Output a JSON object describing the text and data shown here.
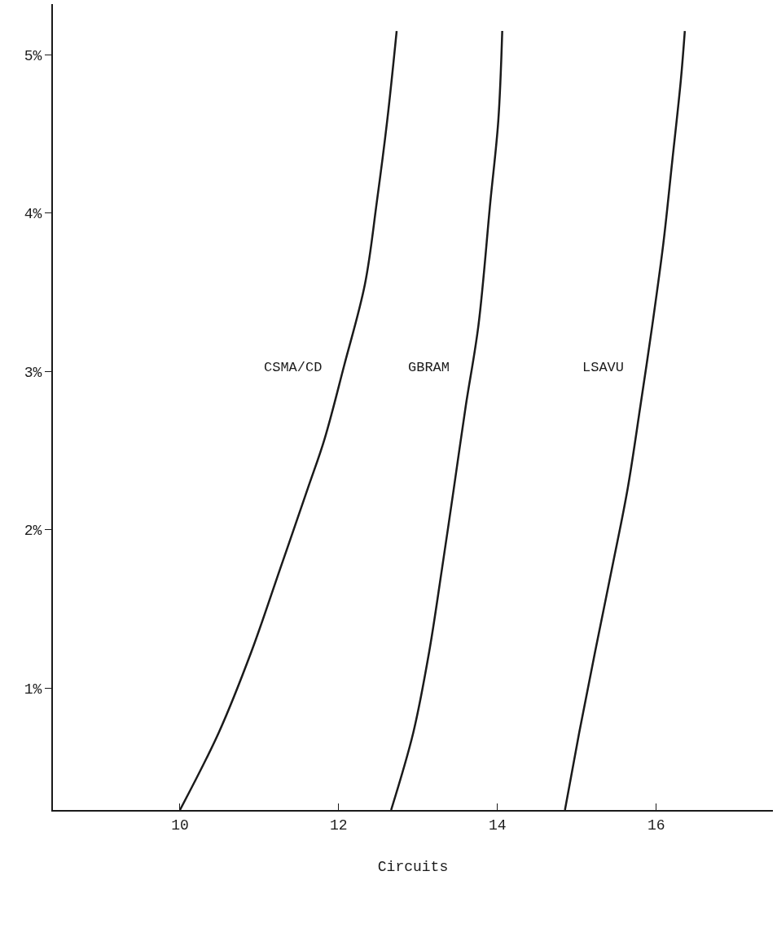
{
  "chart_data": {
    "type": "line",
    "xlabel": "Circuits",
    "xlim": [
      8.4,
      17.47
    ],
    "xticks": [
      10,
      12,
      14,
      16
    ],
    "ylim": [
      0.23,
      5.32
    ],
    "yticks": [
      {
        "value": 1,
        "label": "1%"
      },
      {
        "value": 2,
        "label": "2%"
      },
      {
        "value": 3,
        "label": "3%"
      },
      {
        "value": 4,
        "label": "4%"
      },
      {
        "value": 5,
        "label": "5%"
      }
    ],
    "legend": false,
    "marker": "none",
    "line_style": "solid",
    "series": [
      {
        "name": "CSMA/CD",
        "color": "#1a1a1a",
        "x": [
          10.0,
          10.49,
          10.9,
          11.26,
          11.61,
          11.82,
          12.07,
          12.33,
          12.48,
          12.61,
          12.73
        ],
        "values": [
          0.23,
          0.72,
          1.23,
          1.75,
          2.26,
          2.57,
          3.04,
          3.55,
          4.07,
          4.58,
          5.15
        ]
      },
      {
        "name": "GBRAM",
        "color": "#1a1a1a",
        "x": [
          12.66,
          12.94,
          13.14,
          13.3,
          13.45,
          13.6,
          13.76,
          13.91,
          14.01,
          14.06
        ],
        "values": [
          0.23,
          0.72,
          1.23,
          1.75,
          2.26,
          2.78,
          3.29,
          4.07,
          4.58,
          5.15
        ]
      },
      {
        "name": "LSAVU",
        "color": "#1a1a1a",
        "x": [
          14.85,
          15.03,
          15.23,
          15.44,
          15.64,
          15.8,
          15.95,
          16.09,
          16.2,
          16.31,
          16.36
        ],
        "values": [
          0.23,
          0.72,
          1.23,
          1.75,
          2.26,
          2.78,
          3.29,
          3.81,
          4.32,
          4.84,
          5.15
        ]
      }
    ]
  }
}
